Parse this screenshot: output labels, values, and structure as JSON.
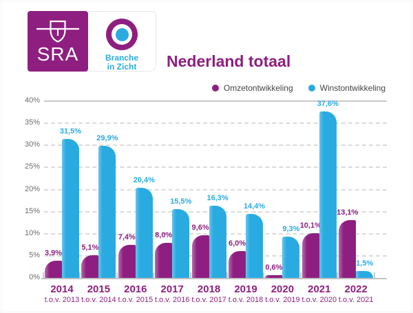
{
  "logo": {
    "sra": "SRA",
    "biz_line1": "Branche",
    "biz_line2": "in Zicht"
  },
  "title": "Nederland totaal",
  "legend": [
    {
      "label": "Omzetontwikkeling",
      "color": "#8E1F80"
    },
    {
      "label": "Winstontwikkeling",
      "color": "#29ABE2"
    }
  ],
  "colors": {
    "brand_purple": "#8E1F80",
    "brand_cyan": "#29ABE2",
    "axis_text": "#6d6d6d",
    "legend_text": "#444444",
    "gridline": "#dadada"
  },
  "chart_data": {
    "type": "bar",
    "title": "Nederland totaal",
    "categories": [
      "2014",
      "2015",
      "2016",
      "2017",
      "2018",
      "2019",
      "2020",
      "2021",
      "2022"
    ],
    "subcategories": [
      "t.o.v. 2013",
      "t.o.v. 2014",
      "t.o.v. 2015",
      "t.o.v. 2016",
      "t.o.v. 2017",
      "t.o.v. 2018",
      "t.o.v. 2019",
      "t.o.v. 2020",
      "t.o.v. 2021"
    ],
    "series": [
      {
        "name": "Omzetontwikkeling",
        "key": "omzet",
        "color": "#8E1F80",
        "values": [
          3.9,
          5.1,
          7.4,
          8.0,
          9.6,
          6.0,
          0.6,
          10.1,
          13.1
        ],
        "display": [
          "3,9%",
          "5,1%",
          "7,4%",
          "8,0%",
          "9,6%",
          "6,0%",
          "0,6%",
          "10,1%",
          "13,1%"
        ]
      },
      {
        "name": "Winstontwikkeling",
        "key": "winst",
        "color": "#29ABE2",
        "values": [
          31.5,
          29.9,
          20.4,
          15.5,
          16.3,
          14.4,
          9.3,
          37.6,
          1.5
        ],
        "display": [
          "31,5%",
          "29,9%",
          "20,4%",
          "15,5%",
          "16,3%",
          "14,4%",
          "9,3%",
          "37,6%",
          "1,5%"
        ]
      }
    ],
    "xlabel": "",
    "ylabel": "",
    "ylim": [
      0,
      40
    ],
    "ytick_labels": [
      "0%",
      "5%",
      "10%",
      "15%",
      "20%",
      "25%",
      "30%",
      "35%",
      "40%"
    ],
    "grid": "horizontal-dashed, top line solid",
    "legend_position": "top-right",
    "value_labels": "above bars, matching series color, comma decimals"
  }
}
